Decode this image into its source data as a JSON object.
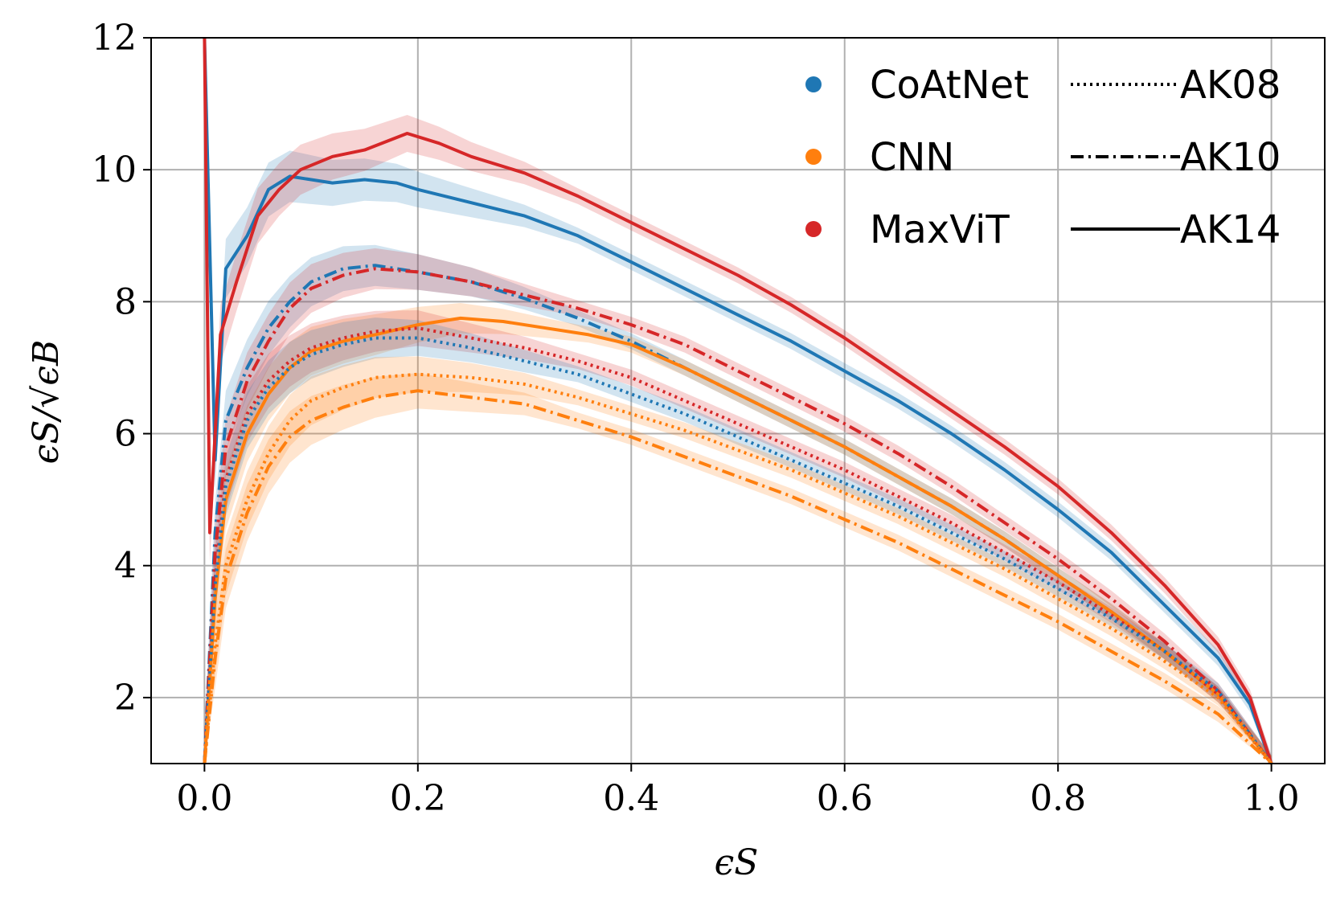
{
  "chart_data": {
    "type": "line",
    "title": "",
    "xlabel": "ϵS",
    "ylabel": "ϵS/√ϵB",
    "xlim": [
      -0.05,
      1.05
    ],
    "ylim": [
      1,
      12
    ],
    "grid": true,
    "xticks": [
      0.0,
      0.2,
      0.4,
      0.6,
      0.8,
      1.0
    ],
    "xtick_labels": [
      "0.0",
      "0.2",
      "0.4",
      "0.6",
      "0.8",
      "1.0"
    ],
    "yticks": [
      2,
      4,
      6,
      8,
      10,
      12
    ],
    "ytick_labels": [
      "2",
      "4",
      "6",
      "8",
      "10",
      "12"
    ],
    "legend": {
      "placement": "top-right",
      "models": [
        {
          "name": "CoAtNet",
          "color": "#1f77b4"
        },
        {
          "name": "CNN",
          "color": "#ff7f0e"
        },
        {
          "name": "MaxViT",
          "color": "#d62728"
        }
      ],
      "styles": [
        {
          "name": "AK08",
          "dash": "dotted"
        },
        {
          "name": "AK10",
          "dash": "dashdot"
        },
        {
          "name": "AK14",
          "dash": "solid"
        }
      ]
    },
    "series": [
      {
        "name": "CoAtNet AK14",
        "model": "CoAtNet",
        "style": "AK14",
        "color": "#1f77b4",
        "dash": "solid",
        "x": [
          0.0,
          0.01,
          0.02,
          0.04,
          0.06,
          0.08,
          0.1,
          0.12,
          0.15,
          0.18,
          0.2,
          0.25,
          0.3,
          0.35,
          0.4,
          0.45,
          0.5,
          0.55,
          0.6,
          0.65,
          0.7,
          0.75,
          0.8,
          0.85,
          0.9,
          0.95,
          0.98,
          1.0
        ],
        "y": [
          12.0,
          5.6,
          8.5,
          9.0,
          9.7,
          9.9,
          9.85,
          9.8,
          9.85,
          9.8,
          9.7,
          9.5,
          9.3,
          9.0,
          8.6,
          8.2,
          7.8,
          7.4,
          6.95,
          6.5,
          6.0,
          5.45,
          4.85,
          4.2,
          3.4,
          2.6,
          1.9,
          1.0
        ]
      },
      {
        "name": "MaxViT AK14",
        "model": "MaxViT",
        "style": "AK14",
        "color": "#d62728",
        "dash": "solid",
        "x": [
          0.0,
          0.005,
          0.015,
          0.03,
          0.05,
          0.07,
          0.09,
          0.12,
          0.15,
          0.19,
          0.22,
          0.25,
          0.3,
          0.35,
          0.4,
          0.45,
          0.5,
          0.55,
          0.6,
          0.65,
          0.7,
          0.75,
          0.8,
          0.85,
          0.9,
          0.95,
          0.98,
          1.0
        ],
        "y": [
          12.0,
          4.5,
          7.5,
          8.3,
          9.3,
          9.7,
          10.0,
          10.2,
          10.3,
          10.55,
          10.4,
          10.2,
          9.95,
          9.6,
          9.2,
          8.8,
          8.4,
          7.95,
          7.45,
          6.9,
          6.35,
          5.8,
          5.2,
          4.5,
          3.7,
          2.8,
          2.0,
          1.0
        ]
      },
      {
        "name": "CoAtNet AK10",
        "model": "CoAtNet",
        "style": "AK10",
        "color": "#1f77b4",
        "dash": "dashdot",
        "x": [
          0.0,
          0.01,
          0.02,
          0.04,
          0.06,
          0.08,
          0.1,
          0.13,
          0.16,
          0.2,
          0.25,
          0.3,
          0.35,
          0.4,
          0.45,
          0.5,
          0.55,
          0.6,
          0.65,
          0.7,
          0.75,
          0.8,
          0.85,
          0.9,
          0.95,
          1.0
        ],
        "y": [
          1.0,
          4.5,
          6.2,
          7.0,
          7.6,
          8.0,
          8.3,
          8.5,
          8.55,
          8.45,
          8.3,
          8.05,
          7.75,
          7.4,
          7.0,
          6.6,
          6.2,
          5.8,
          5.35,
          4.9,
          4.4,
          3.85,
          3.3,
          2.7,
          2.05,
          1.0
        ]
      },
      {
        "name": "MaxViT AK10",
        "model": "MaxViT",
        "style": "AK10",
        "color": "#d62728",
        "dash": "dashdot",
        "x": [
          0.0,
          0.01,
          0.02,
          0.04,
          0.06,
          0.08,
          0.1,
          0.13,
          0.16,
          0.2,
          0.25,
          0.3,
          0.35,
          0.4,
          0.45,
          0.5,
          0.55,
          0.6,
          0.65,
          0.7,
          0.75,
          0.8,
          0.85,
          0.9,
          0.95,
          1.0
        ],
        "y": [
          1.0,
          4.2,
          5.8,
          6.8,
          7.4,
          7.9,
          8.2,
          8.4,
          8.5,
          8.45,
          8.3,
          8.1,
          7.9,
          7.65,
          7.35,
          6.95,
          6.55,
          6.15,
          5.7,
          5.2,
          4.65,
          4.1,
          3.5,
          2.85,
          2.1,
          1.0
        ]
      },
      {
        "name": "CNN AK14",
        "model": "CNN",
        "style": "AK14",
        "color": "#ff7f0e",
        "dash": "solid",
        "x": [
          0.0,
          0.01,
          0.02,
          0.04,
          0.06,
          0.08,
          0.1,
          0.13,
          0.16,
          0.2,
          0.24,
          0.28,
          0.32,
          0.36,
          0.4,
          0.45,
          0.5,
          0.55,
          0.6,
          0.65,
          0.7,
          0.75,
          0.8,
          0.85,
          0.9,
          0.95,
          1.0
        ],
        "y": [
          1.0,
          3.5,
          5.0,
          6.0,
          6.6,
          7.0,
          7.25,
          7.4,
          7.5,
          7.65,
          7.75,
          7.7,
          7.6,
          7.5,
          7.35,
          7.0,
          6.6,
          6.2,
          5.8,
          5.35,
          4.9,
          4.4,
          3.85,
          3.3,
          2.7,
          2.05,
          1.0
        ]
      },
      {
        "name": "MaxViT AK08",
        "model": "MaxViT",
        "style": "AK08",
        "color": "#d62728",
        "dash": "dotted",
        "x": [
          0.0,
          0.01,
          0.02,
          0.04,
          0.06,
          0.08,
          0.1,
          0.13,
          0.16,
          0.2,
          0.25,
          0.3,
          0.35,
          0.4,
          0.45,
          0.5,
          0.55,
          0.6,
          0.65,
          0.7,
          0.75,
          0.8,
          0.85,
          0.9,
          0.95,
          1.0
        ],
        "y": [
          1.0,
          3.8,
          5.3,
          6.3,
          6.8,
          7.1,
          7.3,
          7.45,
          7.55,
          7.6,
          7.45,
          7.3,
          7.1,
          6.85,
          6.5,
          6.15,
          5.8,
          5.45,
          5.05,
          4.65,
          4.2,
          3.75,
          3.25,
          2.7,
          2.05,
          1.0
        ]
      },
      {
        "name": "CoAtNet AK08",
        "model": "CoAtNet",
        "style": "AK08",
        "color": "#1f77b4",
        "dash": "dotted",
        "x": [
          0.0,
          0.01,
          0.02,
          0.04,
          0.06,
          0.08,
          0.1,
          0.13,
          0.16,
          0.2,
          0.25,
          0.3,
          0.35,
          0.4,
          0.45,
          0.5,
          0.55,
          0.6,
          0.65,
          0.7,
          0.75,
          0.8,
          0.85,
          0.9,
          0.95,
          1.0
        ],
        "y": [
          1.0,
          3.7,
          5.2,
          6.2,
          6.7,
          7.0,
          7.2,
          7.35,
          7.45,
          7.45,
          7.3,
          7.1,
          6.9,
          6.6,
          6.3,
          5.95,
          5.6,
          5.25,
          4.9,
          4.5,
          4.1,
          3.65,
          3.2,
          2.7,
          2.1,
          1.0
        ]
      },
      {
        "name": "CNN AK08",
        "model": "CNN",
        "style": "AK08",
        "color": "#ff7f0e",
        "dash": "dotted",
        "x": [
          0.0,
          0.01,
          0.02,
          0.04,
          0.06,
          0.08,
          0.1,
          0.13,
          0.16,
          0.2,
          0.25,
          0.3,
          0.35,
          0.4,
          0.45,
          0.5,
          0.55,
          0.6,
          0.65,
          0.7,
          0.75,
          0.8,
          0.85,
          0.9,
          0.95,
          1.0
        ],
        "y": [
          1.0,
          2.8,
          4.0,
          5.0,
          5.7,
          6.2,
          6.5,
          6.7,
          6.85,
          6.9,
          6.85,
          6.75,
          6.55,
          6.3,
          6.05,
          5.75,
          5.45,
          5.1,
          4.75,
          4.35,
          3.95,
          3.5,
          3.05,
          2.55,
          2.0,
          1.0
        ]
      },
      {
        "name": "CNN AK10",
        "model": "CNN",
        "style": "AK10",
        "color": "#ff7f0e",
        "dash": "dashdot",
        "x": [
          0.0,
          0.01,
          0.02,
          0.04,
          0.06,
          0.08,
          0.1,
          0.13,
          0.16,
          0.2,
          0.25,
          0.3,
          0.35,
          0.4,
          0.45,
          0.5,
          0.55,
          0.6,
          0.65,
          0.7,
          0.75,
          0.8,
          0.85,
          0.9,
          0.95,
          1.0
        ],
        "y": [
          1.0,
          2.6,
          3.8,
          4.8,
          5.5,
          5.95,
          6.2,
          6.4,
          6.55,
          6.65,
          6.55,
          6.45,
          6.2,
          5.95,
          5.65,
          5.35,
          5.05,
          4.7,
          4.35,
          3.95,
          3.55,
          3.15,
          2.7,
          2.25,
          1.75,
          1.0
        ]
      }
    ]
  }
}
